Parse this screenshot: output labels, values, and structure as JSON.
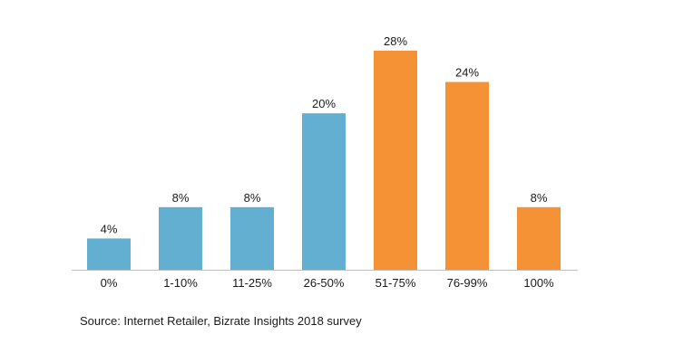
{
  "chart_data": {
    "type": "bar",
    "categories": [
      "0%",
      "1-10%",
      "11-25%",
      "26-50%",
      "51-75%",
      "76-99%",
      "100%"
    ],
    "values": [
      4,
      8,
      8,
      20,
      28,
      24,
      8
    ],
    "data_labels": [
      "4%",
      "8%",
      "8%",
      "20%",
      "28%",
      "24%",
      "8%"
    ],
    "bar_colors": [
      "#62afd1",
      "#62afd1",
      "#62afd1",
      "#62afd1",
      "#f59235",
      "#f59235",
      "#f59235"
    ],
    "title": "",
    "xlabel": "",
    "ylabel": "",
    "ylim": [
      0,
      28
    ],
    "grid": false,
    "legend": "none"
  },
  "source_text": "Source: Internet Retailer, Bizrate Insights 2018 survey",
  "colors": {
    "blue": "#62afd1",
    "orange": "#f59235",
    "axis": "#bfbfbf",
    "text": "#1a1a1a"
  }
}
